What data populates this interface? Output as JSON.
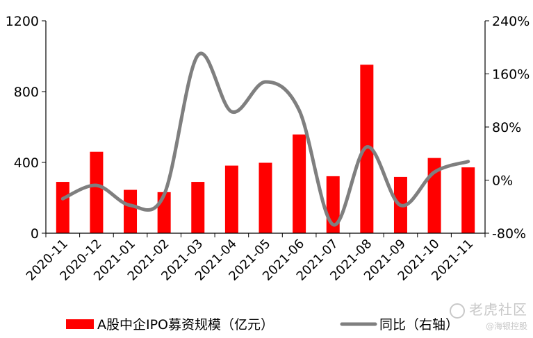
{
  "chart_data": {
    "type": "bar",
    "categories": [
      "2020-11",
      "2020-12",
      "2021-01",
      "2021-02",
      "2021-03",
      "2021-04",
      "2021-05",
      "2021-06",
      "2021-07",
      "2021-08",
      "2021-09",
      "2021-10",
      "2021-11"
    ],
    "series": [
      {
        "name": "A股中企IPO募资规模（亿元）",
        "type": "bar",
        "axis": "left",
        "color": "#ff0000",
        "values": [
          290,
          460,
          245,
          232,
          290,
          382,
          398,
          558,
          322,
          952,
          318,
          425,
          372
        ]
      },
      {
        "name": "同比（右轴）",
        "type": "line",
        "axis": "right",
        "color": "#7f7f7f",
        "values": [
          -28,
          -8,
          -38,
          -22,
          188,
          103,
          148,
          105,
          -67,
          50,
          -38,
          12,
          28
        ]
      }
    ],
    "y_left": {
      "lim": [
        0,
        1200
      ],
      "ticks": [
        0,
        400,
        800,
        1200
      ],
      "tick_labels": [
        "0",
        "400",
        "800",
        "1200"
      ]
    },
    "y_right": {
      "lim": [
        -80,
        240
      ],
      "ticks": [
        -80,
        0,
        80,
        160,
        240
      ],
      "tick_labels": [
        "-80%",
        "0%",
        "80%",
        "160%",
        "240%"
      ],
      "unit": "%"
    },
    "grid": false,
    "legend_position": "bottom"
  },
  "watermark": {
    "text": "老虎社区",
    "subtext": "@海银控股"
  }
}
